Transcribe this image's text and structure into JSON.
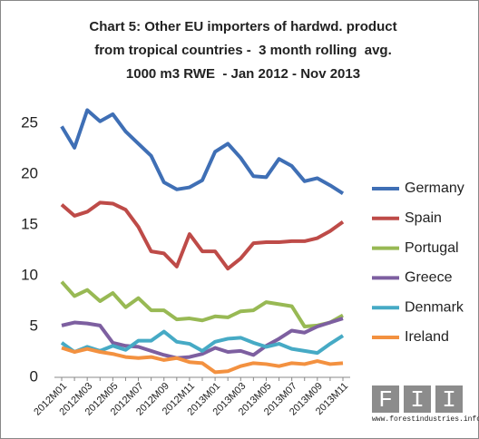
{
  "chart_data": {
    "type": "line",
    "title": [
      "Chart 5: Other EU importers of hardwd. product",
      "from tropical countries -  3 month rolling  avg.",
      "1000 m3 RWE  - Jan 2012 - Nov 2013"
    ],
    "categories": [
      "2012M01",
      null,
      "2012M03",
      null,
      "2012M05",
      null,
      "2012M07",
      null,
      "2012M09",
      null,
      "2012M11",
      null,
      "2013M01",
      null,
      "2013M03",
      null,
      "2013M05",
      null,
      "2013M07",
      null,
      "2013M09",
      null,
      "2013M11"
    ],
    "series": [
      {
        "name": "Germany",
        "color": "#3f6fb5",
        "values": [
          24.7,
          22.6,
          26.3,
          25.2,
          25.9,
          24.2,
          23.0,
          21.8,
          19.2,
          18.5,
          18.7,
          19.4,
          22.2,
          23.0,
          21.6,
          19.8,
          19.7,
          21.5,
          20.8,
          19.3,
          19.6,
          18.9,
          18.1
        ]
      },
      {
        "name": "Spain",
        "color": "#be4b48",
        "values": [
          17.0,
          15.9,
          16.3,
          17.2,
          17.1,
          16.5,
          14.8,
          12.4,
          12.2,
          10.9,
          14.1,
          12.4,
          12.4,
          10.7,
          11.7,
          13.2,
          13.3,
          13.3,
          13.4,
          13.4,
          13.7,
          14.4,
          15.3
        ]
      },
      {
        "name": "Portugal",
        "color": "#98b954",
        "values": [
          9.4,
          8.0,
          8.6,
          7.5,
          8.3,
          6.9,
          7.8,
          6.6,
          6.6,
          5.7,
          5.8,
          5.6,
          6.0,
          5.9,
          6.5,
          6.6,
          7.4,
          7.2,
          7.0,
          5.0,
          5.1,
          5.4,
          6.1
        ]
      },
      {
        "name": "Greece",
        "color": "#7d5fa0",
        "values": [
          5.1,
          5.4,
          5.3,
          5.1,
          3.4,
          3.1,
          3.0,
          2.6,
          2.2,
          1.9,
          2.0,
          2.3,
          2.9,
          2.5,
          2.6,
          2.2,
          3.1,
          3.8,
          4.6,
          4.4,
          5.0,
          5.4,
          5.8
        ]
      },
      {
        "name": "Denmark",
        "color": "#46aac5",
        "values": [
          3.4,
          2.5,
          3.0,
          2.6,
          3.1,
          2.7,
          3.6,
          3.6,
          4.5,
          3.5,
          3.3,
          2.6,
          3.5,
          3.8,
          3.9,
          3.4,
          3.0,
          3.3,
          2.8,
          2.6,
          2.4,
          3.3,
          4.1
        ]
      },
      {
        "name": "Ireland",
        "color": "#f39140",
        "values": [
          2.9,
          2.5,
          2.8,
          2.5,
          2.3,
          2.0,
          1.9,
          2.0,
          1.7,
          1.9,
          1.5,
          1.4,
          0.5,
          0.6,
          1.1,
          1.4,
          1.3,
          1.1,
          1.4,
          1.3,
          1.6,
          1.3,
          1.4
        ]
      }
    ],
    "ylim": [
      0,
      27
    ],
    "yticks": [
      0,
      5,
      10,
      15,
      20,
      25
    ],
    "grid": false,
    "legend": "right",
    "logo_letters": [
      "F",
      "I",
      "I"
    ],
    "logo_url": "www.forestindustries.info"
  }
}
